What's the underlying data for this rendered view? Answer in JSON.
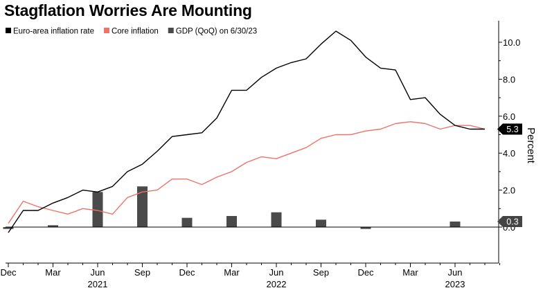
{
  "chart_data": {
    "type": "line",
    "title": "Stagflation Worries Are Mounting",
    "ylabel": "Percent",
    "ylim": [
      -2,
      11
    ],
    "yticks": [
      0.0,
      2.0,
      4.0,
      6.0,
      8.0,
      10.0
    ],
    "ytick_labels": [
      "0.0",
      "2.0",
      "4.0",
      "6.0",
      "8.0",
      "10.0"
    ],
    "xticks": [
      {
        "label": "Dec",
        "month": 0
      },
      {
        "label": "Mar",
        "month": 3
      },
      {
        "label": "Jun",
        "month": 6
      },
      {
        "label": "Sep",
        "month": 9
      },
      {
        "label": "Dec",
        "month": 12
      },
      {
        "label": "Mar",
        "month": 15
      },
      {
        "label": "Jun",
        "month": 18
      },
      {
        "label": "Sep",
        "month": 21
      },
      {
        "label": "Dec",
        "month": 24
      },
      {
        "label": "Mar",
        "month": 27
      },
      {
        "label": "Jun",
        "month": 30
      }
    ],
    "year_labels": [
      {
        "label": "2021",
        "month": 6
      },
      {
        "label": "2022",
        "month": 18
      },
      {
        "label": "2023",
        "month": 30
      }
    ],
    "x_months": [
      0,
      1,
      2,
      3,
      4,
      5,
      6,
      7,
      8,
      9,
      10,
      11,
      12,
      13,
      14,
      15,
      16,
      17,
      18,
      19,
      20,
      21,
      22,
      23,
      24,
      25,
      26,
      27,
      28,
      29,
      30,
      31,
      32
    ],
    "series": [
      {
        "name": "Euro-area inflation rate",
        "kind": "line",
        "color": "#000000",
        "values": [
          -0.3,
          0.9,
          0.9,
          1.3,
          1.6,
          2.0,
          1.9,
          2.2,
          3.0,
          3.4,
          4.1,
          4.9,
          5.0,
          5.1,
          5.9,
          7.4,
          7.4,
          8.1,
          8.6,
          8.9,
          9.1,
          9.9,
          10.6,
          10.1,
          9.2,
          8.6,
          8.5,
          6.9,
          7.0,
          6.1,
          5.5,
          5.3,
          5.3
        ]
      },
      {
        "name": "Core inflation",
        "kind": "line",
        "color": "#f07167",
        "values": [
          0.2,
          1.4,
          1.1,
          0.9,
          0.7,
          1.0,
          0.9,
          0.7,
          1.6,
          1.9,
          2.0,
          2.6,
          2.6,
          2.3,
          2.7,
          3.0,
          3.5,
          3.8,
          3.7,
          4.0,
          4.3,
          4.8,
          5.0,
          5.0,
          5.2,
          5.3,
          5.6,
          5.7,
          5.6,
          5.3,
          5.5,
          5.5,
          5.3
        ]
      },
      {
        "name": "GDP (QoQ) on 6/30/23",
        "kind": "bar",
        "color": "#4a4a4a",
        "points": [
          {
            "month": 0,
            "value": -0.1
          },
          {
            "month": 3,
            "value": 0.1
          },
          {
            "month": 6,
            "value": 1.9
          },
          {
            "month": 9,
            "value": 2.2
          },
          {
            "month": 12,
            "value": 0.5
          },
          {
            "month": 15,
            "value": 0.6
          },
          {
            "month": 18,
            "value": 0.8
          },
          {
            "month": 21,
            "value": 0.4
          },
          {
            "month": 24,
            "value": -0.1
          },
          {
            "month": 30,
            "value": 0.3
          }
        ]
      }
    ],
    "badges": [
      {
        "text": "5.3",
        "value": 5.3,
        "color": "#000000"
      },
      {
        "text": "0.3",
        "value": 0.3,
        "color": "#444444"
      }
    ],
    "legend_placement": "top-left"
  }
}
